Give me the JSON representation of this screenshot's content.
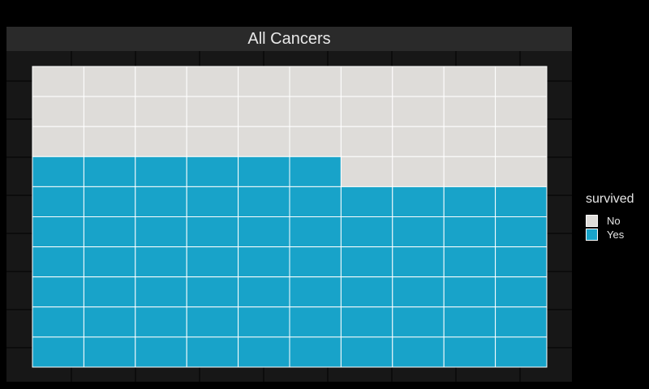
{
  "chart_data": {
    "type": "waffle",
    "title": "All Cancers",
    "grid": {
      "columns": 10,
      "rows": 10
    },
    "legend": {
      "title": "survived",
      "position": "right",
      "items": [
        {
          "label": "No",
          "color": "#dedcd9"
        },
        {
          "label": "Yes",
          "color": "#18a3c9"
        }
      ]
    },
    "column_counts": [
      {
        "column": 1,
        "Yes": 7,
        "No": 3
      },
      {
        "column": 2,
        "Yes": 7,
        "No": 3
      },
      {
        "column": 3,
        "Yes": 7,
        "No": 3
      },
      {
        "column": 4,
        "Yes": 7,
        "No": 3
      },
      {
        "column": 5,
        "Yes": 7,
        "No": 3
      },
      {
        "column": 6,
        "Yes": 7,
        "No": 3
      },
      {
        "column": 7,
        "Yes": 6,
        "No": 4
      },
      {
        "column": 8,
        "Yes": 6,
        "No": 4
      },
      {
        "column": 9,
        "Yes": 6,
        "No": 4
      },
      {
        "column": 10,
        "Yes": 6,
        "No": 4
      }
    ],
    "totals": {
      "Yes": 66,
      "No": 34
    },
    "colors": {
      "panel_background": "#171717",
      "strip_background": "#2a2a2a",
      "panel_grid": "#000000",
      "tile_border": "#ffffff"
    }
  }
}
